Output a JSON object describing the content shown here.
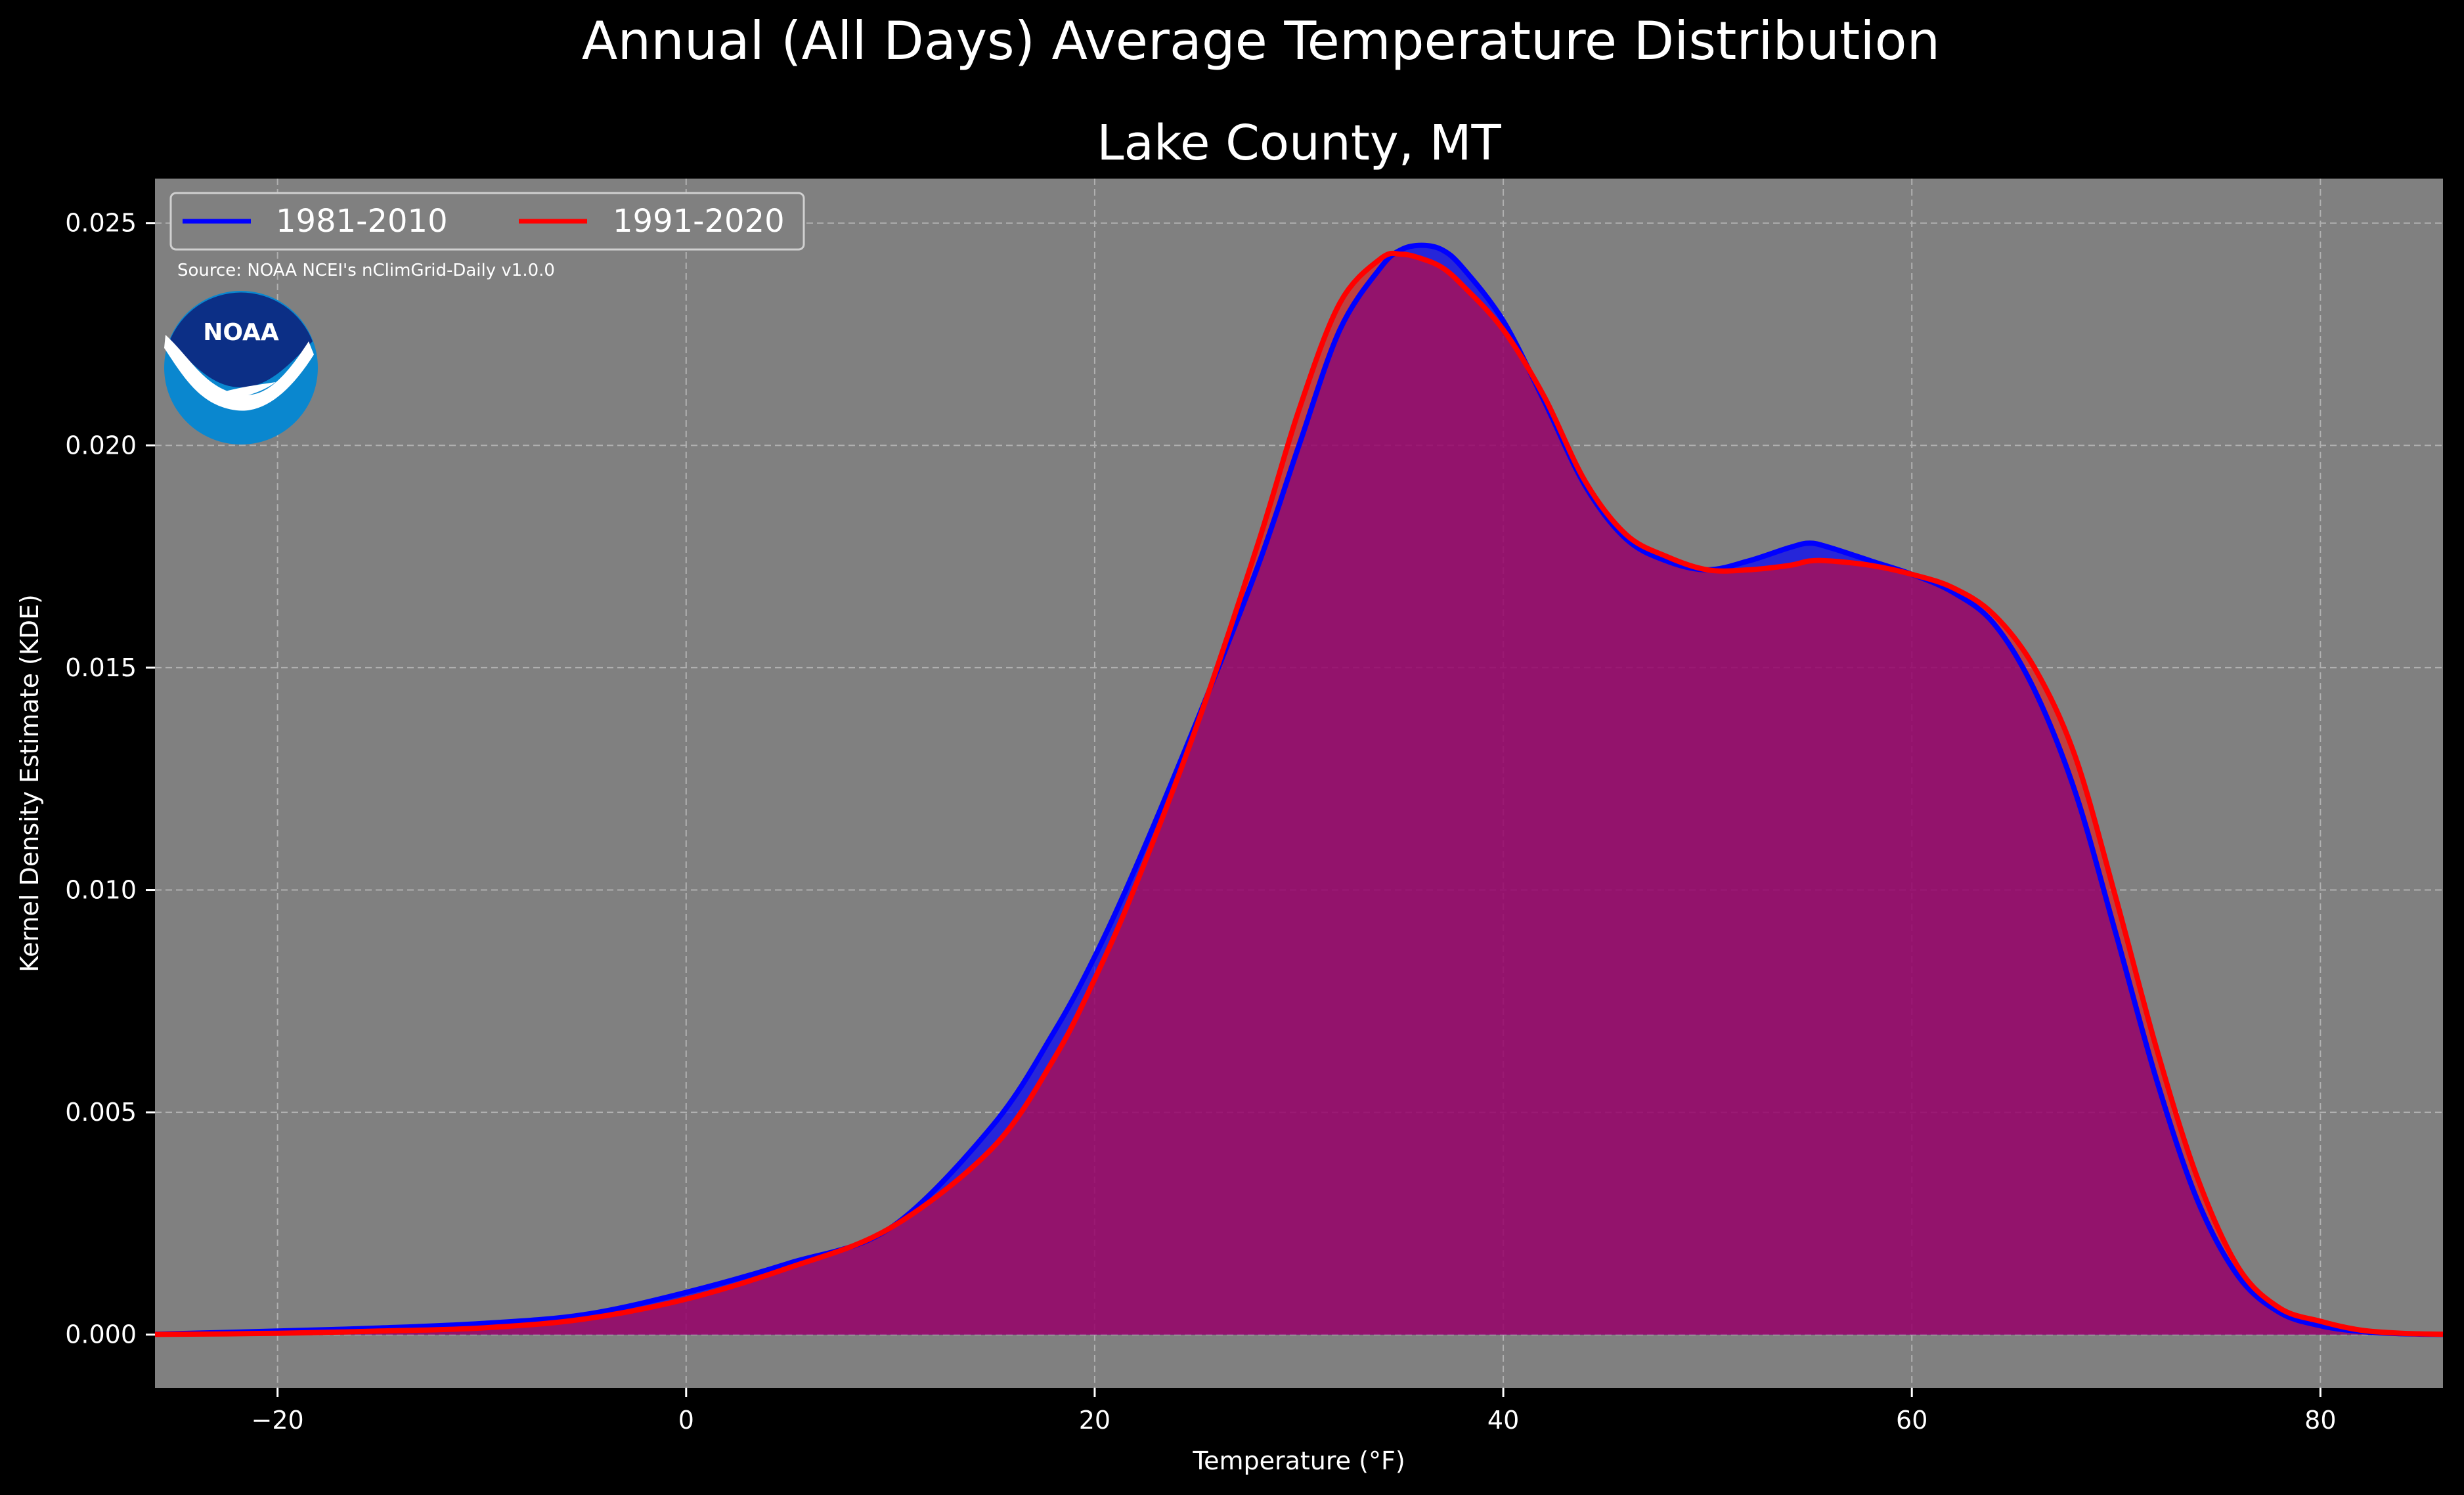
{
  "chart_data": {
    "type": "area",
    "suptitle": "Annual (All Days) Average Temperature Distribution",
    "title": "Lake County, MT",
    "xlabel": "Temperature (°F)",
    "ylabel": "Kernel Density Estimate (KDE)",
    "xlim": [
      -26,
      86
    ],
    "ylim": [
      -0.0012,
      0.026
    ],
    "xticks": [
      -20,
      0,
      20,
      40,
      60,
      80
    ],
    "yticks": [
      0.0,
      0.005,
      0.01,
      0.015,
      0.02,
      0.025
    ],
    "xtick_labels": [
      "−20",
      "0",
      "20",
      "40",
      "60",
      "80"
    ],
    "ytick_labels": [
      "0.000",
      "0.005",
      "0.010",
      "0.015",
      "0.020",
      "0.025"
    ],
    "grid": true,
    "legend_position": "top-left",
    "source": "Source: NOAA NCEI's nClimGrid-Daily v1.0.0",
    "logo_text": "NOAA",
    "x": [
      -26,
      -20,
      -15,
      -10,
      -5,
      0,
      5,
      10,
      15,
      18,
      20,
      22,
      25,
      28,
      30,
      32,
      34,
      35,
      36,
      37,
      38,
      40,
      42,
      44,
      46,
      48,
      50,
      52,
      54,
      55,
      56,
      58,
      60,
      62,
      64,
      66,
      68,
      70,
      72,
      74,
      76,
      78,
      80,
      82,
      84,
      86
    ],
    "series": [
      {
        "name": "1981-2010",
        "color": "#0000ff",
        "values": [
          1e-05,
          8e-05,
          0.00015,
          0.00025,
          0.00045,
          0.00095,
          0.0016,
          0.0024,
          0.0047,
          0.0068,
          0.0085,
          0.0105,
          0.0138,
          0.0173,
          0.02,
          0.0226,
          0.024,
          0.0244,
          0.0245,
          0.0244,
          0.024,
          0.0228,
          0.021,
          0.0191,
          0.0179,
          0.0174,
          0.0172,
          0.0174,
          0.0177,
          0.0178,
          0.0177,
          0.0174,
          0.0171,
          0.0167,
          0.016,
          0.0145,
          0.0122,
          0.009,
          0.0057,
          0.003,
          0.0013,
          0.0005,
          0.0002,
          7e-05,
          2e-05,
          5e-06
        ]
      },
      {
        "name": "1991-2020",
        "color": "#ff0000",
        "values": [
          5e-06,
          3e-05,
          8e-05,
          0.00015,
          0.00035,
          0.0008,
          0.0015,
          0.0024,
          0.0042,
          0.0062,
          0.008,
          0.0101,
          0.0137,
          0.0178,
          0.0208,
          0.0232,
          0.0242,
          0.0243,
          0.0242,
          0.024,
          0.0236,
          0.0226,
          0.0211,
          0.0192,
          0.018,
          0.0175,
          0.0172,
          0.0172,
          0.0173,
          0.0174,
          0.0174,
          0.0173,
          0.0171,
          0.0168,
          0.0162,
          0.015,
          0.013,
          0.0098,
          0.0064,
          0.0035,
          0.0015,
          0.0006,
          0.0003,
          0.0001,
          3e-05,
          1e-05
        ]
      }
    ]
  }
}
